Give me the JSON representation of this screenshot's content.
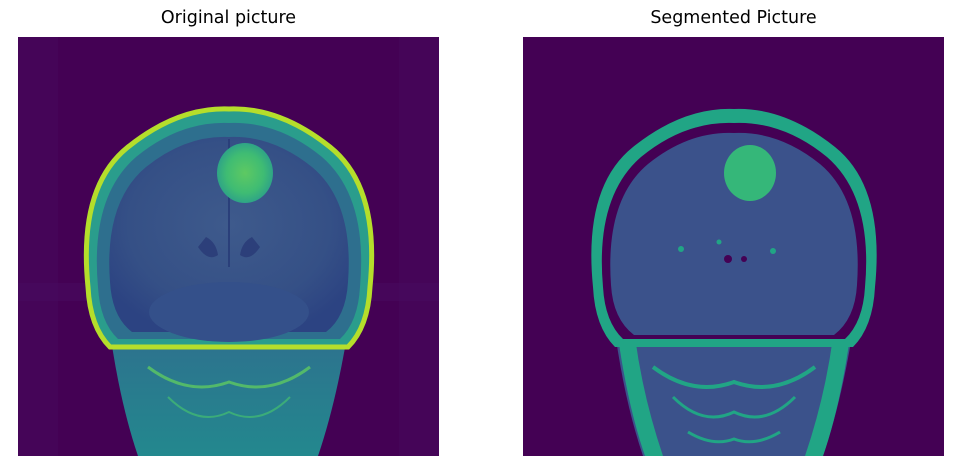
{
  "figure": {
    "left_title": "Original picture",
    "right_title": "Segmented Picture"
  },
  "colors": {
    "background_dark": "#440154",
    "original_body": "#3b528b",
    "original_skin": "#29b07a",
    "bright_edge": "#b5de2b",
    "tumor": "#35b779",
    "segment_body": "#3b528b",
    "segment_edge": "#21a585",
    "segment_dark": "#440154"
  }
}
